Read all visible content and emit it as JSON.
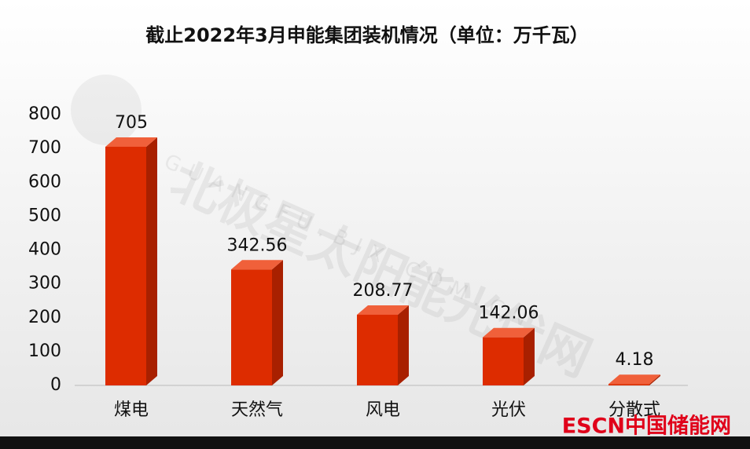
{
  "chart_data": {
    "type": "bar3d",
    "title": "截止2022年3月申能集团装机情况（单位：万千瓦）",
    "categories": [
      "煤电",
      "天然气",
      "风电",
      "光伏",
      "分散式"
    ],
    "values": [
      705,
      342.56,
      208.77,
      142.06,
      4.18
    ],
    "color": "#dd2c00",
    "ylim": [
      0,
      800
    ],
    "yticks": [
      0,
      100,
      200,
      300,
      400,
      500,
      600,
      700,
      800
    ],
    "watermark": "北极星太阳能光伏网",
    "watermark_url": "GUANGFU.BJX.COM.CN",
    "logo": "ESCN中国储能网"
  }
}
